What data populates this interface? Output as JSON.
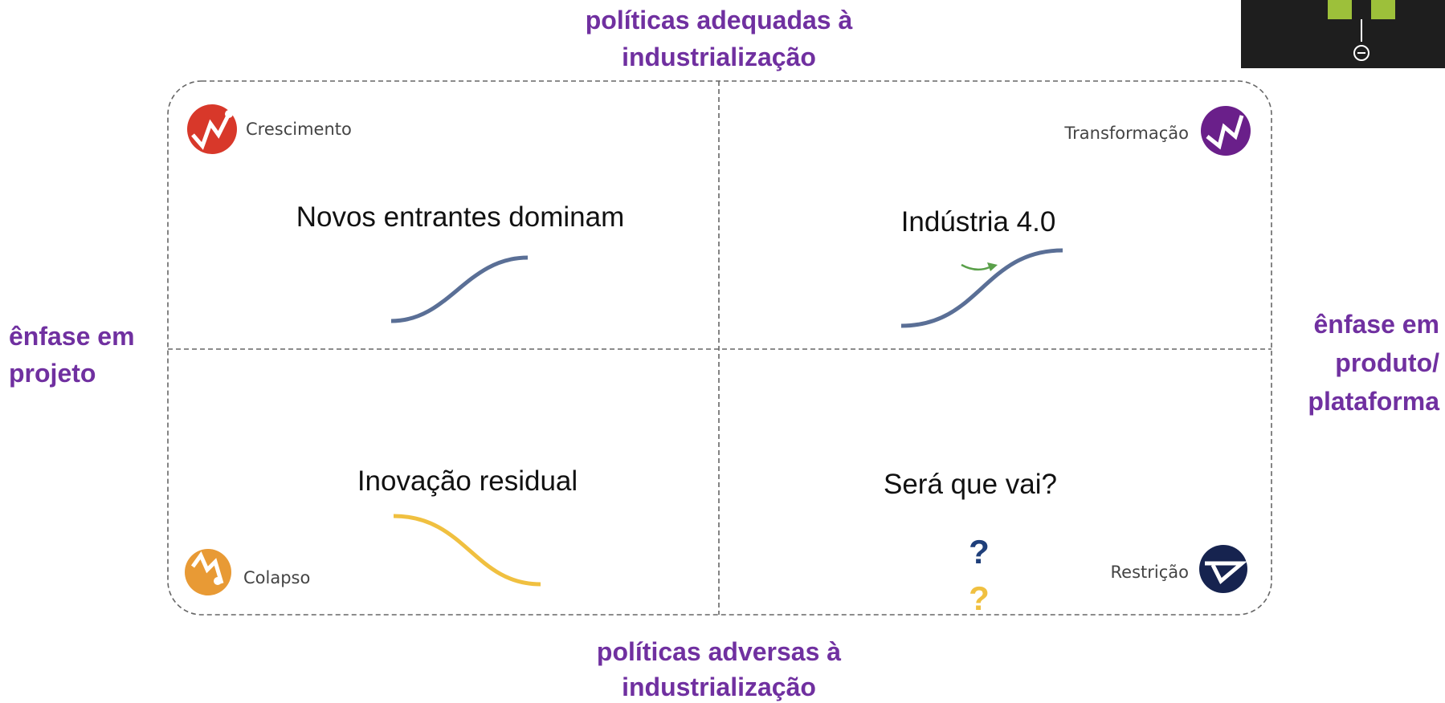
{
  "axes": {
    "top": [
      "políticas adequadas à",
      "industrialização"
    ],
    "bottom": [
      "políticas adversas à",
      "industrialização"
    ],
    "left": [
      "ênfase em",
      "projeto"
    ],
    "right": [
      "ênfase em",
      "produto/",
      "plataforma"
    ]
  },
  "quadrants": [
    {
      "label": "Crescimento",
      "scenario": "Novos entrantes dominam"
    },
    {
      "label": "Transformação",
      "scenario": "Indústria 4.0"
    },
    {
      "label": "Colapso",
      "scenario": "Inovação residual"
    },
    {
      "label": "Restrição",
      "scenario": "Será que vai?"
    }
  ],
  "question_marks": [
    "?",
    "?"
  ]
}
